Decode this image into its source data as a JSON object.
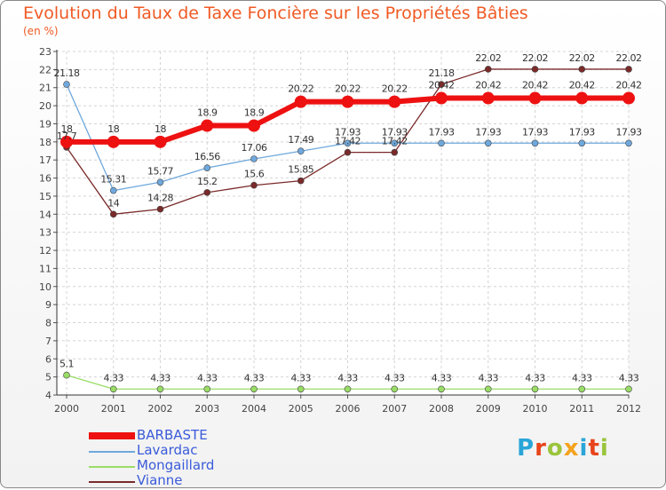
{
  "title": "Evolution du Taux de Taxe Foncière sur les Propriétés Bâties",
  "subtitle": "(en %)",
  "logo": {
    "letters": [
      "P",
      "r",
      "o",
      "x",
      "i",
      "t",
      "i"
    ],
    "colors": [
      "#2aa5d8",
      "#e8441b",
      "#9ac43c",
      "#f4a21d",
      "#2aa5d8",
      "#e8441b",
      "#9ac43c"
    ]
  },
  "chart_data": {
    "type": "line",
    "x": [
      "2000",
      "2001",
      "2002",
      "2003",
      "2004",
      "2005",
      "2006",
      "2007",
      "2008",
      "2009",
      "2010",
      "2011",
      "2012"
    ],
    "ylim": [
      4,
      23
    ],
    "yticks": [
      "4",
      "5",
      "6",
      "7",
      "8",
      "9",
      "10",
      "11",
      "12",
      "13",
      "14",
      "15",
      "16",
      "17",
      "18",
      "19",
      "20",
      "21",
      "22",
      "23"
    ],
    "grid": true,
    "series": [
      {
        "name": "BARBASTE",
        "color": "#ee1111",
        "width": 6,
        "marker": 7,
        "values": [
          18,
          18,
          18,
          18.9,
          18.9,
          20.22,
          20.22,
          20.22,
          20.42,
          20.42,
          20.42,
          20.42,
          20.42
        ],
        "labels": [
          "18",
          "18",
          "18",
          "18.9",
          "18.9",
          "20.22",
          "20.22",
          "20.22",
          "20.42",
          "20.42",
          "20.42",
          "20.42",
          "20.42"
        ]
      },
      {
        "name": "Lavardac",
        "color": "#6fa8dc",
        "width": 1.3,
        "marker": 3.5,
        "values": [
          21.18,
          15.31,
          15.77,
          16.56,
          17.06,
          17.49,
          17.93,
          17.93,
          17.93,
          17.93,
          17.93,
          17.93,
          17.93
        ],
        "labels": [
          "21.18",
          "15.31",
          "15.77",
          "16.56",
          "17.06",
          "17.49",
          "17.93",
          "17.93",
          "17.93",
          "17.93",
          "17.93",
          "17.93",
          "17.93"
        ]
      },
      {
        "name": "Mongaillard",
        "color": "#99dd66",
        "width": 1.3,
        "marker": 3.5,
        "values": [
          5.1,
          4.33,
          4.33,
          4.33,
          4.33,
          4.33,
          4.33,
          4.33,
          4.33,
          4.33,
          4.33,
          4.33,
          4.33
        ],
        "labels": [
          "5.1",
          "4.33",
          "4.33",
          "4.33",
          "4.33",
          "4.33",
          "4.33",
          "4.33",
          "4.33",
          "4.33",
          "4.33",
          "4.33",
          "4.33"
        ]
      },
      {
        "name": "Vianne",
        "color": "#7a2a2a",
        "width": 1.3,
        "marker": 3.5,
        "values": [
          17.7,
          14,
          14.28,
          15.2,
          15.6,
          15.85,
          17.42,
          17.42,
          21.18,
          22.02,
          22.02,
          22.02,
          22.02
        ],
        "labels": [
          "17.7",
          "14",
          "14.28",
          "15.2",
          "15.6",
          "15.85",
          "17.42",
          "17.42",
          "21.18",
          "22.02",
          "22.02",
          "22.02",
          "22.02"
        ]
      }
    ]
  }
}
